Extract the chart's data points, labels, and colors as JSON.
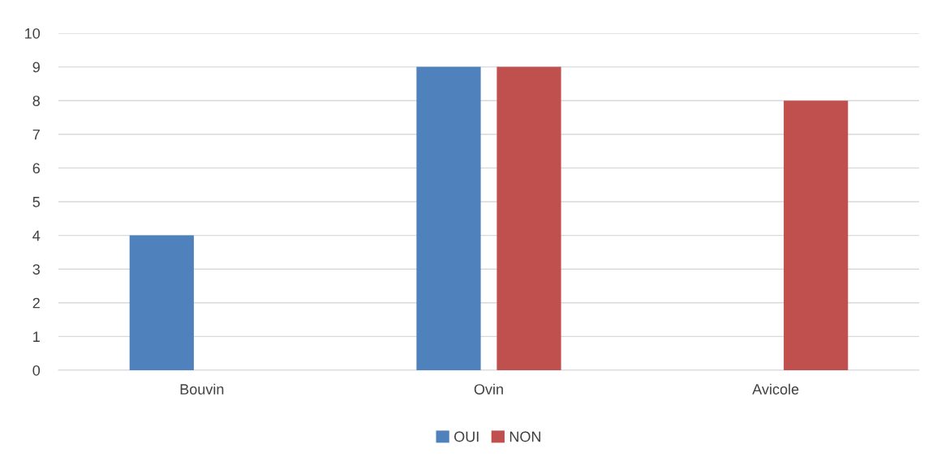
{
  "chart_data": {
    "type": "bar",
    "categories": [
      "Bouvin",
      "Ovin",
      "Avicole"
    ],
    "series": [
      {
        "name": "OUI",
        "color": "#4f81bd",
        "values": [
          4,
          9,
          0
        ]
      },
      {
        "name": "NON",
        "color": "#c0504d",
        "values": [
          0,
          9,
          8
        ]
      }
    ],
    "ylim": [
      0,
      10
    ],
    "yticks": [
      0,
      1,
      2,
      3,
      4,
      5,
      6,
      7,
      8,
      9,
      10
    ],
    "grid": "y",
    "legend": "bottom"
  }
}
